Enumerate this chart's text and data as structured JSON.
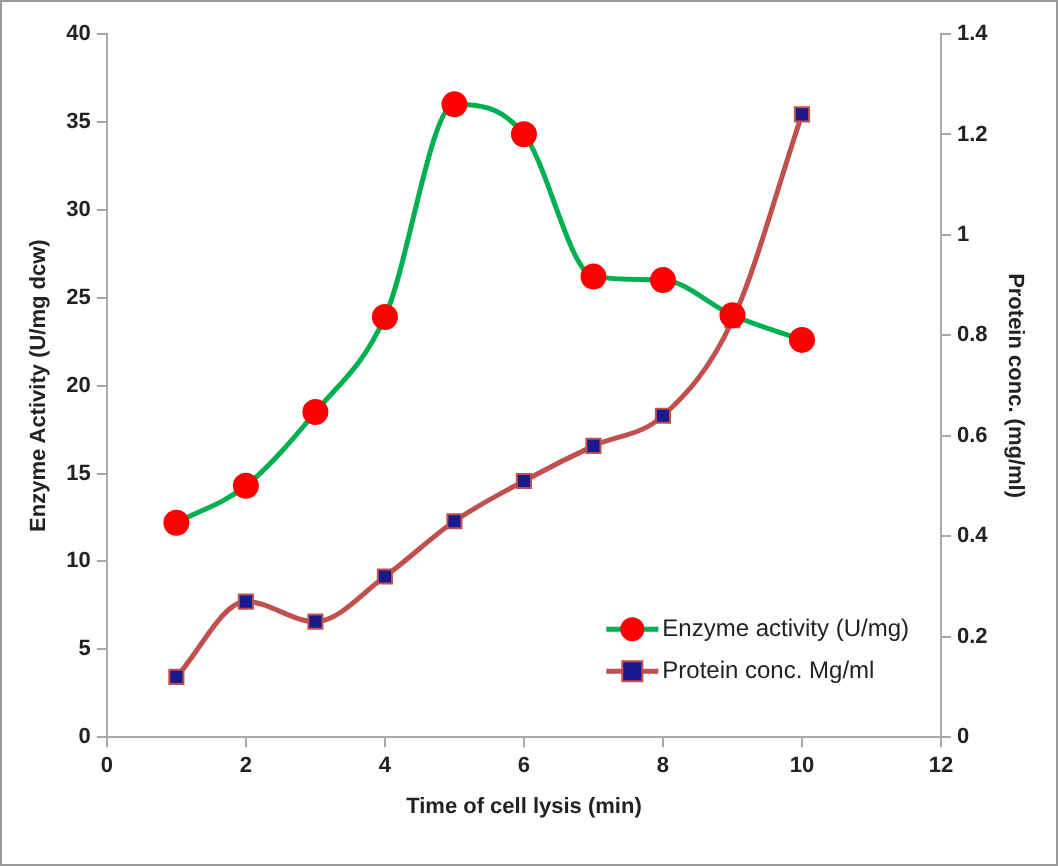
{
  "chart_data": {
    "type": "line",
    "xlabel": "Time of cell lysis (min)",
    "ylabel": "Enzyme Activity (U/mg dcw)",
    "y2label": "Protein conc. (mg/ml)",
    "x": [
      1,
      2,
      3,
      4,
      5,
      6,
      7,
      8,
      9,
      10
    ],
    "series": [
      {
        "name": "Enzyme activity (U/mg)",
        "color": "#00b050",
        "marker": "circle",
        "values": [
          12.2,
          14.3,
          18.5,
          23.9,
          36.0,
          34.3,
          26.2,
          26.0,
          24.0,
          22.6
        ]
      },
      {
        "name": "Protein conc. Mg/ml",
        "color": "#c0504d",
        "marker": "square",
        "axis": "y2",
        "values": [
          0.12,
          0.27,
          0.23,
          0.32,
          0.43,
          0.51,
          0.58,
          0.64,
          0.83,
          1.24
        ]
      }
    ],
    "xlim": [
      0,
      12
    ],
    "xticks": [
      0,
      2,
      4,
      6,
      8,
      10,
      12
    ],
    "ylim": [
      0,
      40
    ],
    "yticks": [
      0,
      5,
      10,
      15,
      20,
      25,
      30,
      35,
      40
    ],
    "y2lim": [
      0,
      1.4
    ],
    "y2ticks": [
      0,
      0.2,
      0.4,
      0.6,
      0.8,
      1,
      1.2,
      1.4
    ],
    "grid": false,
    "legend": "bottom right",
    "line_style": "solid"
  }
}
